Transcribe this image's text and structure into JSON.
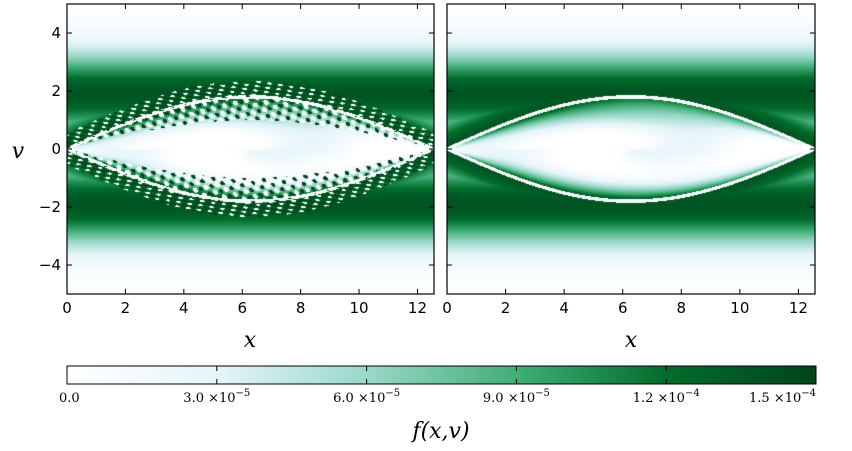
{
  "chart_data": [
    {
      "type": "heatmap",
      "panel": "left",
      "description": "phase-space distribution with filamented vortex",
      "xlabel": "x",
      "ylabel": "v",
      "xlim": [
        0,
        12.566
      ],
      "ylim": [
        -5,
        5
      ],
      "xticks": [
        "0",
        "2",
        "4",
        "6",
        "8",
        "10",
        "12"
      ],
      "yticks": [
        "4",
        "2",
        "0",
        "−2",
        "−4"
      ],
      "structure": {
        "vortex_center": [
          6.28,
          0
        ],
        "separatrix_half_width_v": 1.8,
        "band_peak_v": 1.9,
        "band_halfwidth_v": 2.6,
        "filamentation": true
      }
    },
    {
      "type": "heatmap",
      "panel": "right",
      "description": "phase-space distribution with smooth vortex",
      "xlabel": "x",
      "ylabel": "",
      "xlim": [
        0,
        12.566
      ],
      "ylim": [
        -5,
        5
      ],
      "xticks": [
        "0",
        "2",
        "4",
        "6",
        "8",
        "10",
        "12"
      ],
      "yticks": [],
      "structure": {
        "vortex_center": [
          6.28,
          0
        ],
        "separatrix_half_width_v": 1.8,
        "band_peak_v": 1.9,
        "band_halfwidth_v": 2.6,
        "filamentation": false
      }
    }
  ],
  "colorbar": {
    "label": "f(x,v)",
    "vmin": 0.0,
    "vmax": 0.00015,
    "tick_values": [
      0.0,
      3e-05,
      6e-05,
      9e-05,
      0.00012,
      0.00015
    ],
    "tick_labels": [
      {
        "mant": "0.0",
        "exp": ""
      },
      {
        "mant": "3.0",
        "exp": "−5"
      },
      {
        "mant": "6.0",
        "exp": "−5"
      },
      {
        "mant": "9.0",
        "exp": "−5"
      },
      {
        "mant": "1.2",
        "exp": "−4"
      },
      {
        "mant": "1.5",
        "exp": "−4"
      }
    ],
    "colormap": "BuGn",
    "colors": [
      "#ffffff",
      "#e5f5f9",
      "#99d8c9",
      "#41ae76",
      "#006d2c",
      "#00441b"
    ]
  }
}
